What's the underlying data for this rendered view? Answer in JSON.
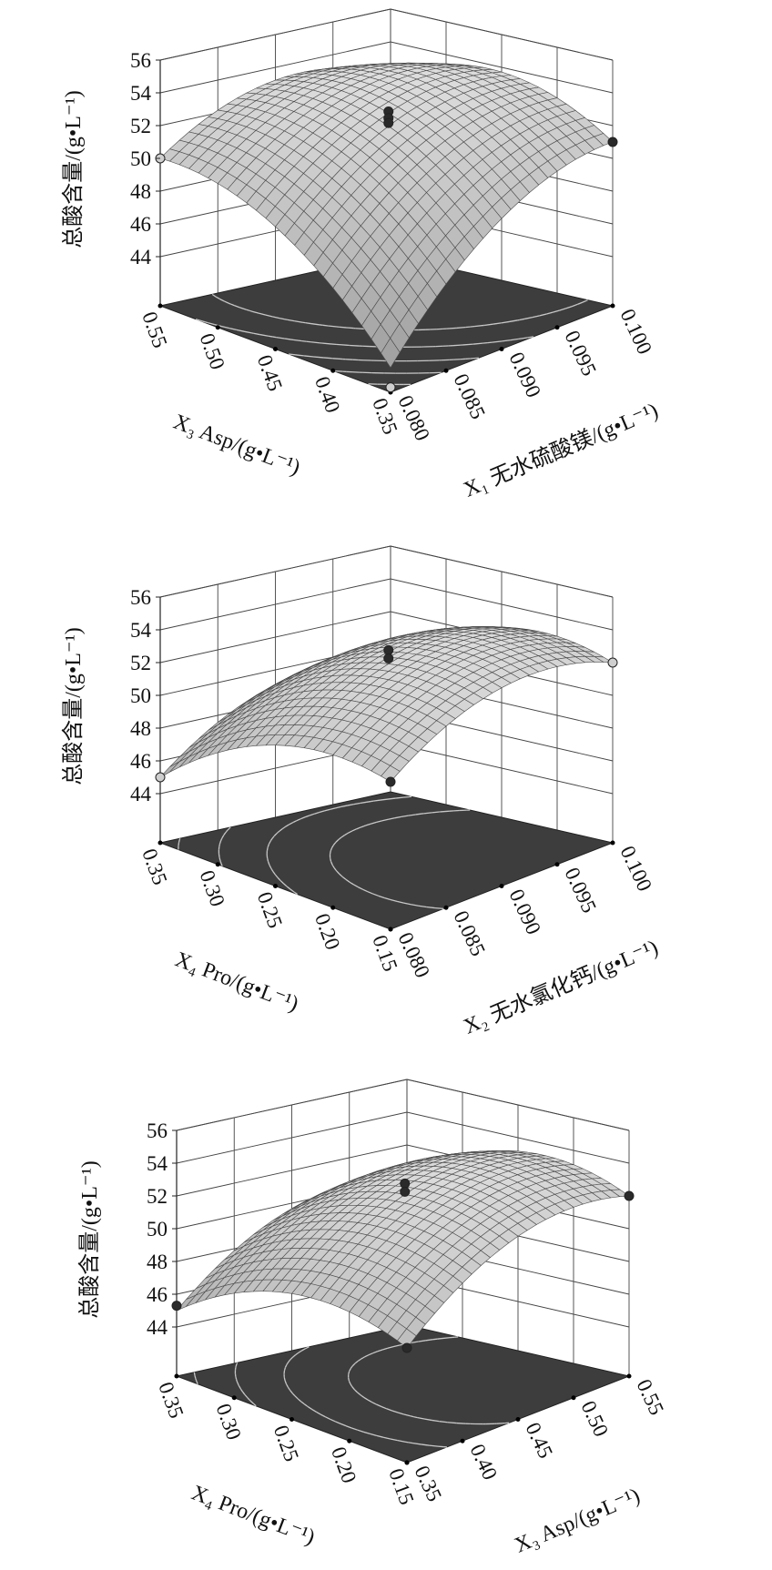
{
  "chart_data": [
    {
      "type": "surface3d",
      "zlabel": "总酸含量/(g•L⁻¹)",
      "zlim": [
        41,
        56
      ],
      "zticks": [
        "44",
        "46",
        "48",
        "50",
        "52",
        "54",
        "56"
      ],
      "x_right": {
        "label": "X₁ 无水硫酸镁/(g•L⁻¹)",
        "range": [
          0.08,
          0.1
        ],
        "ticks": [
          "0.080",
          "0.085",
          "0.090",
          "0.095",
          "0.100"
        ]
      },
      "x_left": {
        "label": "X₃ Asp/(g•L⁻¹)",
        "range": [
          0.35,
          0.55
        ],
        "ticks": [
          "0.35",
          "0.40",
          "0.45",
          "0.50",
          "0.55"
        ]
      },
      "surface_model_coded": {
        "b0": 53.3,
        "a": 2.625,
        "b": 2.125,
        "ab": -1.625,
        "aa": -2.21,
        "bb": -2.21
      },
      "contour_levels": [
        44,
        46,
        48,
        50,
        52
      ],
      "design_points": [
        {
          "right": 0.09,
          "left": 0.45,
          "z": 53.4,
          "shade": "dark"
        },
        {
          "right": 0.09,
          "left": 0.45,
          "z": 53.0,
          "shade": "dark"
        },
        {
          "right": 0.09,
          "left": 0.45,
          "z": 52.7,
          "shade": "dark"
        },
        {
          "right": 0.08,
          "left": 0.55,
          "z": 50.0,
          "shade": "light"
        },
        {
          "right": 0.1,
          "left": 0.35,
          "z": 51.0,
          "shade": "dark"
        },
        {
          "right": 0.08,
          "left": 0.35,
          "z": 41.3,
          "shade": "light"
        }
      ]
    },
    {
      "type": "surface3d",
      "zlabel": "总酸含量/(g•L⁻¹)",
      "zlim": [
        41,
        56
      ],
      "zticks": [
        "44",
        "46",
        "48",
        "50",
        "52",
        "54",
        "56"
      ],
      "x_right": {
        "label": "X₂ 无水氯化钙/(g•L⁻¹)",
        "range": [
          0.08,
          0.1
        ],
        "ticks": [
          "0.080",
          "0.085",
          "0.090",
          "0.095",
          "0.100"
        ]
      },
      "x_left": {
        "label": "X₄ Pro/(g•L⁻¹)",
        "range": [
          0.15,
          0.35
        ],
        "ticks": [
          "0.15",
          "0.20",
          "0.25",
          "0.30",
          "0.35"
        ]
      },
      "surface_model_coded": {
        "b0": 53.2,
        "a": 1.5,
        "b": -2.0,
        "ab": 0.5,
        "aa": -2.1,
        "bb": -2.1
      },
      "contour_levels": [
        44,
        46,
        48,
        50,
        52
      ],
      "design_points": [
        {
          "right": 0.09,
          "left": 0.25,
          "z": 53.3,
          "shade": "dark"
        },
        {
          "right": 0.09,
          "left": 0.25,
          "z": 52.8,
          "shade": "dark"
        },
        {
          "right": 0.08,
          "left": 0.15,
          "z": 50.0,
          "shade": "dark"
        },
        {
          "right": 0.08,
          "left": 0.35,
          "z": 45.0,
          "shade": "light"
        },
        {
          "right": 0.1,
          "left": 0.15,
          "z": 52.0,
          "shade": "light"
        }
      ]
    },
    {
      "type": "surface3d",
      "zlabel": "总酸含量/(g•L⁻¹)",
      "zlim": [
        41,
        56
      ],
      "zticks": [
        "44",
        "46",
        "48",
        "50",
        "52",
        "54",
        "56"
      ],
      "x_right": {
        "label": "X₃ Asp/(g•L⁻¹)",
        "range": [
          0.35,
          0.55
        ],
        "ticks": [
          "0.35",
          "0.40",
          "0.45",
          "0.50",
          "0.55"
        ]
      },
      "x_left": {
        "label": "X₄ Pro/(g•L⁻¹)",
        "range": [
          0.15,
          0.35
        ],
        "ticks": [
          "0.15",
          "0.20",
          "0.25",
          "0.30",
          "0.35"
        ]
      },
      "surface_model_coded": {
        "b0": 53.1,
        "a": 2.25,
        "b": -1.25,
        "ab": 0.25,
        "aa": -2.175,
        "bb": -2.175
      },
      "contour_levels": [
        44,
        46,
        48,
        50,
        52
      ],
      "design_points": [
        {
          "right": 0.45,
          "left": 0.25,
          "z": 53.3,
          "shade": "dark"
        },
        {
          "right": 0.45,
          "left": 0.25,
          "z": 52.8,
          "shade": "dark"
        },
        {
          "right": 0.35,
          "left": 0.15,
          "z": 48.0,
          "shade": "dark"
        },
        {
          "right": 0.35,
          "left": 0.35,
          "z": 45.3,
          "shade": "dark"
        },
        {
          "right": 0.55,
          "left": 0.15,
          "z": 52.0,
          "shade": "dark"
        }
      ]
    }
  ]
}
